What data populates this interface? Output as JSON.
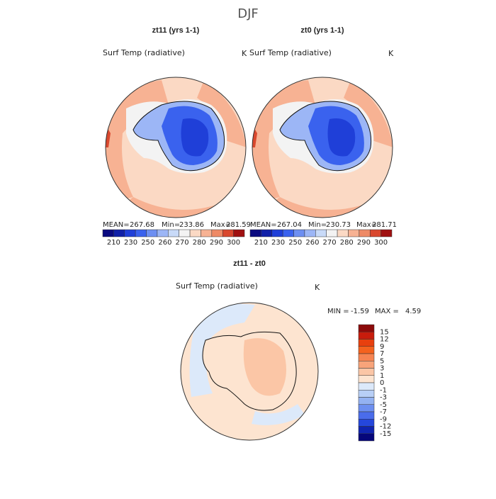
{
  "title": "DJF",
  "panels": [
    {
      "title": "zt11 (yrs 1-1)",
      "variable": "Surf Temp (radiative)",
      "units": "K",
      "stats": [
        {
          "label": "MEAN=",
          "value": 267.68
        },
        {
          "label": "Min=",
          "value": 233.86
        },
        {
          "label": "Max=",
          "value": 281.59
        }
      ]
    },
    {
      "title": "zt0 (yrs 1-1)",
      "variable": "Surf Temp (radiative)",
      "units": "K",
      "stats": [
        {
          "label": "MEAN=",
          "value": 267.04
        },
        {
          "label": "Min=",
          "value": 230.73
        },
        {
          "label": "Max=",
          "value": 281.71
        }
      ]
    }
  ],
  "colorbar": {
    "ticks": [
      210,
      230,
      250,
      260,
      270,
      280,
      290,
      300
    ],
    "colors": [
      "#0a0a80",
      "#1020a8",
      "#1f3fd8",
      "#3a62ee",
      "#6d8ff2",
      "#9cb6f6",
      "#c8daf8",
      "#f3f3f3",
      "#fbd9c4",
      "#f7b293",
      "#ee8a66",
      "#d9482e",
      "#a01010"
    ]
  },
  "difference": {
    "title": "zt11 - zt0",
    "variable": "Surf Temp (radiative)",
    "units": "K",
    "min_label": "MIN =",
    "min": -1.59,
    "max_label": "MAX =",
    "max": 4.59,
    "colorbar": {
      "ticks": [
        15,
        12,
        9,
        7,
        5,
        3,
        1,
        0,
        -1,
        -3,
        -5,
        -7,
        -9,
        -12,
        -15
      ],
      "colors": [
        "#8c0a0a",
        "#c81c0c",
        "#e8400e",
        "#f4621e",
        "#f68452",
        "#f8a47a",
        "#fbc6a6",
        "#fde4d0",
        "#dce9fa",
        "#b8cff6",
        "#94b2f2",
        "#6d8ff0",
        "#4a6ceb",
        "#2547dc",
        "#1024b0",
        "#06067a"
      ]
    }
  }
}
